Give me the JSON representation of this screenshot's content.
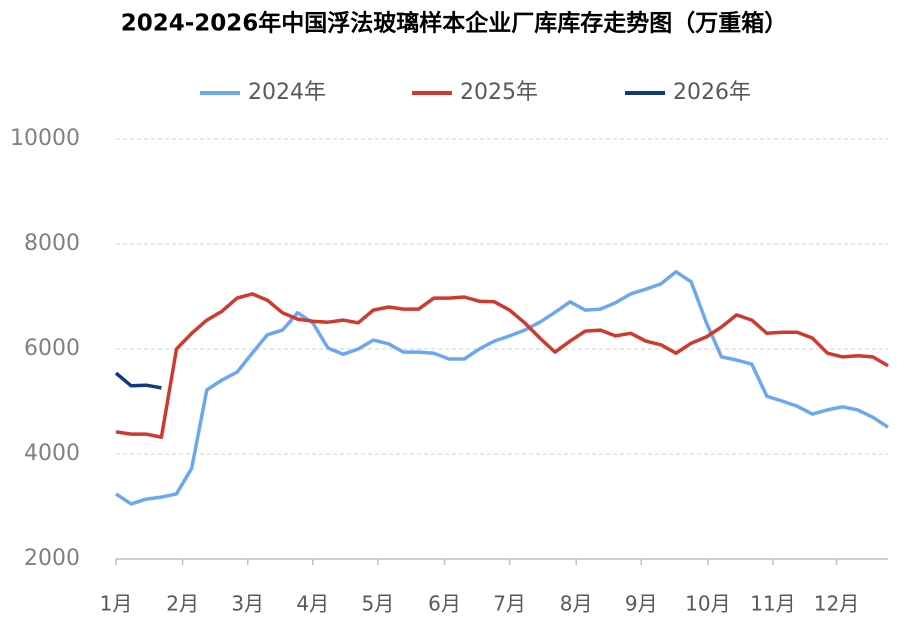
{
  "chart_data": {
    "type": "line",
    "title": "2024-2026年中国浮法玻璃样本企业厂库库存走势图（万重箱）",
    "x": [
      1,
      2,
      3,
      4,
      5,
      6,
      7,
      8,
      9,
      10,
      11,
      12,
      13,
      14,
      15,
      16,
      17,
      18,
      19,
      20,
      21,
      22,
      23,
      24,
      25,
      26,
      27,
      28,
      29,
      30,
      31,
      32,
      33,
      34,
      35,
      36,
      37,
      38,
      39,
      40,
      41,
      42,
      43,
      44,
      45,
      46,
      47,
      48,
      49,
      50,
      51,
      52
    ],
    "xlim": [
      1,
      52
    ],
    "xticks": [
      {
        "value": 1,
        "label": "1月"
      },
      {
        "value": 5.4,
        "label": "2月"
      },
      {
        "value": 9.7,
        "label": "3月"
      },
      {
        "value": 14,
        "label": "4月"
      },
      {
        "value": 18.3,
        "label": "5月"
      },
      {
        "value": 22.7,
        "label": "6月"
      },
      {
        "value": 27,
        "label": "7月"
      },
      {
        "value": 31.4,
        "label": "8月"
      },
      {
        "value": 35.7,
        "label": "9月"
      },
      {
        "value": 40.1,
        "label": "10月"
      },
      {
        "value": 44.4,
        "label": "11月"
      },
      {
        "value": 48.6,
        "label": "12月"
      }
    ],
    "ylim": [
      2000,
      10000
    ],
    "yticks": [
      2000,
      4000,
      6000,
      8000,
      10000
    ],
    "grid": true,
    "legend": "top",
    "series": [
      {
        "name": "2024年",
        "color": "#6aa8f0",
        "values": [
          3240,
          3050,
          3140,
          3180,
          3240,
          3730,
          5220,
          5410,
          5560,
          5920,
          6270,
          6360,
          6690,
          6500,
          6020,
          5900,
          6000,
          6170,
          6100,
          5940,
          5940,
          5920,
          5810,
          5810,
          6000,
          6150,
          6250,
          6360,
          6510,
          6700,
          6900,
          6740,
          6760,
          6880,
          7050,
          7140,
          7240,
          7470,
          7280,
          6500,
          5850,
          5790,
          5710,
          5100,
          5010,
          4910,
          4760,
          4840,
          4900,
          4840,
          4700,
          4510
        ]
      },
      {
        "name": "2025年",
        "color": "#d03a2e",
        "values": [
          4420,
          4380,
          4380,
          4320,
          6000,
          6300,
          6550,
          6720,
          6970,
          7050,
          6930,
          6690,
          6570,
          6530,
          6510,
          6550,
          6500,
          6740,
          6800,
          6760,
          6760,
          6970,
          6970,
          6990,
          6910,
          6900,
          6740,
          6500,
          6210,
          5940,
          6150,
          6340,
          6360,
          6250,
          6300,
          6150,
          6080,
          5920,
          6110,
          6230,
          6420,
          6650,
          6550,
          6300,
          6320,
          6320,
          6210,
          5920,
          5850,
          5870,
          5850,
          5680
        ]
      },
      {
        "name": "2026年",
        "color": "#0f3b7a",
        "values": [
          5540,
          5300,
          5310,
          5260,
          null,
          null,
          null,
          null,
          null,
          null,
          null,
          null,
          null,
          null,
          null,
          null,
          null,
          null,
          null,
          null,
          null,
          null,
          null,
          null,
          null,
          null,
          null,
          null,
          null,
          null,
          null,
          null,
          null,
          null,
          null,
          null,
          null,
          null,
          null,
          null,
          null,
          null,
          null,
          null,
          null,
          null,
          null,
          null,
          null,
          null,
          null,
          null
        ]
      }
    ]
  }
}
